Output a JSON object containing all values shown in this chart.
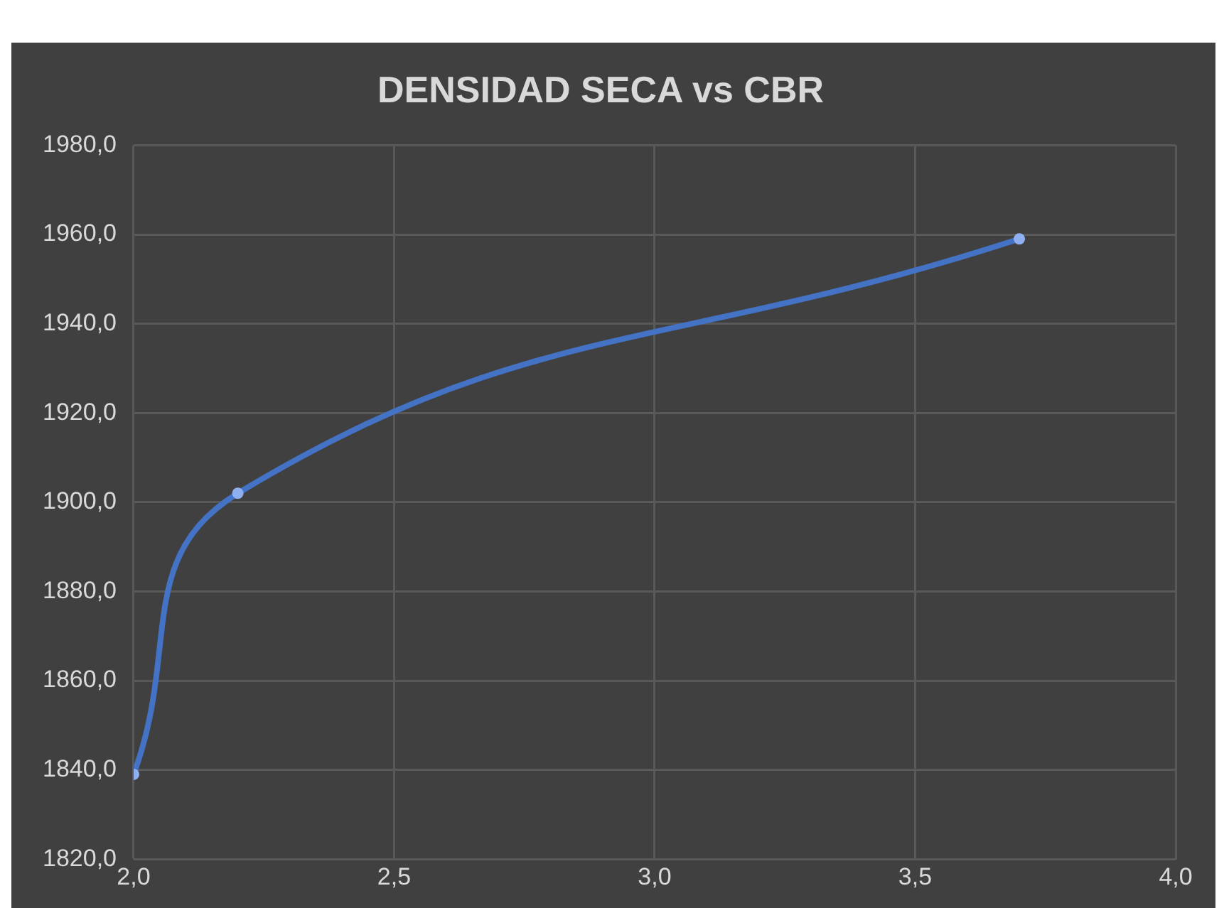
{
  "chart_data": {
    "type": "line",
    "title": "DENSIDAD SECA vs CBR",
    "series": [
      {
        "color": "#4472c4",
        "x": [
          2.0,
          2.2,
          3.7
        ],
        "values": [
          1839,
          1902,
          1959
        ]
      }
    ],
    "xlim": [
      2.0,
      4.0
    ],
    "xticks": [
      {
        "value": 2.0,
        "label": "2,0"
      },
      {
        "value": 2.5,
        "label": "2,5"
      },
      {
        "value": 3.0,
        "label": "3,0"
      },
      {
        "value": 3.5,
        "label": "3,5"
      },
      {
        "value": 4.0,
        "label": "4,0"
      }
    ],
    "ylim": [
      1820,
      1980
    ],
    "yticks": [
      {
        "value": 1820,
        "label": "1820,0"
      },
      {
        "value": 1840,
        "label": "1840,0"
      },
      {
        "value": 1860,
        "label": "1860,0"
      },
      {
        "value": 1880,
        "label": "1880,0"
      },
      {
        "value": 1900,
        "label": "1900,0"
      },
      {
        "value": 1920,
        "label": "1920,0"
      },
      {
        "value": 1940,
        "label": "1940,0"
      },
      {
        "value": 1960,
        "label": "1960,0"
      },
      {
        "value": 1980,
        "label": "1980,0"
      }
    ],
    "grid": true,
    "legend": false,
    "marker": "circle"
  }
}
